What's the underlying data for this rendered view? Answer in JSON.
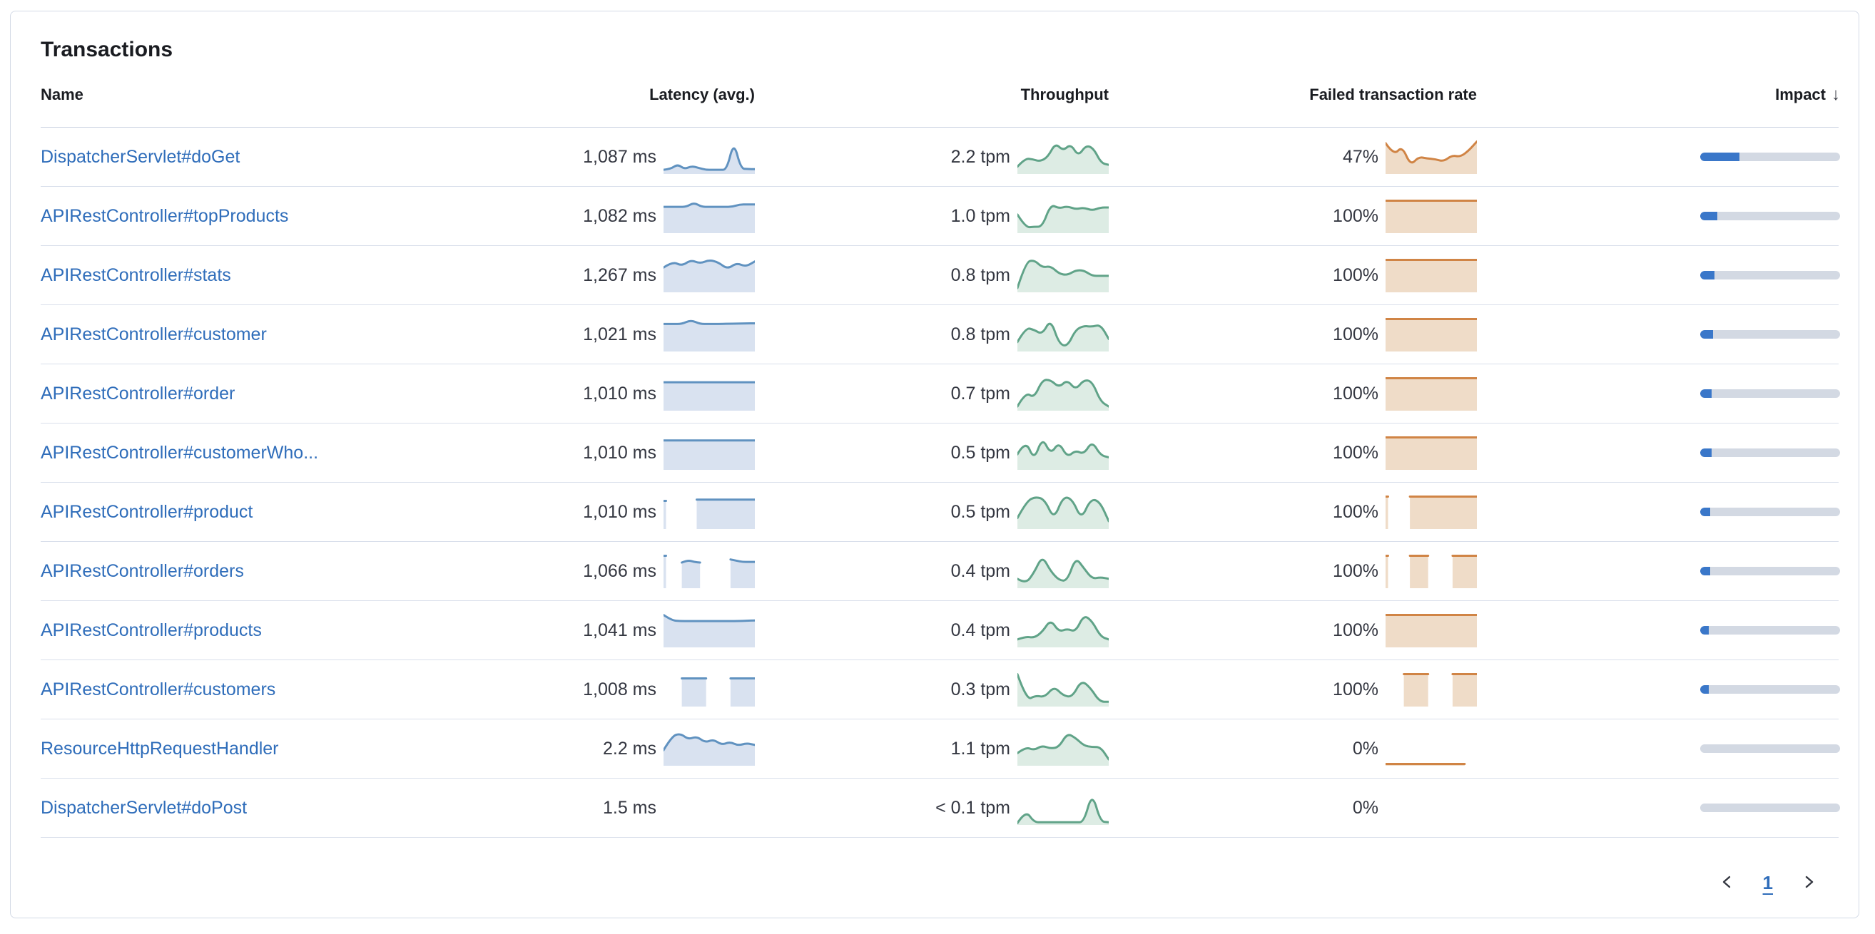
{
  "card": {
    "title": "Transactions"
  },
  "colors": {
    "link_blue": "#2f6dba",
    "latency_stroke": "#6092c0",
    "latency_fill": "#d9e2f0",
    "throughput_stroke": "#60a388",
    "throughput_fill": "#ddece4",
    "failed_stroke": "#d08445",
    "failed_fill": "#efdcc8",
    "impact_fill": "#3a77c9",
    "impact_track": "#d3d9e3"
  },
  "table": {
    "columns": [
      {
        "label": "Name",
        "align": "left",
        "sortable": false
      },
      {
        "label": "Latency (avg.)",
        "align": "right",
        "sortable": true
      },
      {
        "label": "Throughput",
        "align": "right",
        "sortable": true
      },
      {
        "label": "Failed transaction rate",
        "align": "right",
        "sortable": true
      },
      {
        "label": "Impact",
        "align": "right",
        "sortable": true,
        "sort_icon": "↓",
        "sort_direction": "descending"
      }
    ],
    "rows": [
      {
        "name": "DispatcherServlet#doGet",
        "latency": "1,087 ms",
        "latency_spark": [
          0.08,
          0.1,
          0.26,
          0.1,
          0.2,
          0.14,
          0.08,
          0.08,
          0.08,
          0.08,
          1.0,
          0.12,
          0.1,
          0.1
        ],
        "throughput": "2.2 tpm",
        "throughput_spark": [
          0.18,
          0.45,
          0.42,
          0.35,
          0.5,
          0.95,
          0.7,
          0.92,
          0.52,
          0.88,
          0.78,
          0.3,
          0.24
        ],
        "failed_rate": "47%",
        "failed_spark": [
          0.95,
          0.55,
          0.85,
          0.22,
          0.5,
          0.45,
          0.42,
          0.35,
          0.55,
          0.5,
          0.7,
          1.0
        ],
        "impact_pct": 28
      },
      {
        "name": "APIRestController#topProducts",
        "latency": "1,082 ms",
        "latency_spark": [
          0.8,
          0.8,
          0.8,
          0.8,
          0.94,
          0.8,
          0.8,
          0.8,
          0.8,
          0.8,
          0.88,
          0.88,
          0.88
        ],
        "throughput": "1.0 tpm",
        "throughput_spark": [
          0.55,
          0.12,
          0.15,
          0.15,
          0.88,
          0.75,
          0.82,
          0.72,
          0.78,
          0.68,
          0.78,
          0.78
        ],
        "failed_rate": "100%",
        "failed_spark": [
          1,
          1,
          1,
          1,
          1,
          1,
          1,
          1,
          1,
          1
        ],
        "impact_pct": 12
      },
      {
        "name": "APIRestController#stats",
        "latency": "1,267 ms",
        "latency_spark": [
          0.75,
          0.95,
          0.8,
          1.0,
          0.88,
          1.0,
          0.92,
          0.7,
          0.9,
          0.78,
          0.95
        ],
        "throughput": "0.8 tpm",
        "throughput_spark": [
          0.08,
          0.92,
          1.0,
          0.75,
          0.8,
          0.55,
          0.5,
          0.66,
          0.66,
          0.48,
          0.48,
          0.48
        ],
        "failed_rate": "100%",
        "failed_spark": [
          1,
          1,
          1,
          1,
          1,
          1,
          1,
          1,
          1,
          1
        ],
        "impact_pct": 10
      },
      {
        "name": "APIRestController#customer",
        "latency": "1,021 ms",
        "latency_spark": [
          0.84,
          0.84,
          0.84,
          0.97,
          0.84,
          0.84,
          0.84,
          0.85,
          0.85,
          0.86,
          0.86
        ],
        "throughput": "0.8 tpm",
        "throughput_spark": [
          0.25,
          0.72,
          0.65,
          0.5,
          1.0,
          0.2,
          0.1,
          0.65,
          0.78,
          0.75,
          0.82,
          0.35
        ],
        "failed_rate": "100%",
        "failed_spark": [
          1,
          1,
          1,
          1,
          1,
          1,
          1,
          1,
          1,
          1
        ],
        "impact_pct": 9
      },
      {
        "name": "APIRestController#order",
        "latency": "1,010 ms",
        "latency_spark": [
          0.87,
          0.87,
          0.87,
          0.87,
          0.87,
          0.87,
          0.87,
          0.87,
          0.87,
          0.87
        ],
        "throughput": "0.7 tpm",
        "throughput_spark": [
          0.08,
          0.55,
          0.35,
          0.95,
          0.95,
          0.7,
          0.95,
          0.62,
          0.95,
          0.9,
          0.25,
          0.08
        ],
        "failed_rate": "100%",
        "failed_spark": [
          1,
          1,
          1,
          1,
          1,
          1,
          1,
          1,
          1
        ],
        "impact_pct": 8
      },
      {
        "name": "APIRestController#customerWho...",
        "latency": "1,010 ms",
        "latency_spark": [
          0.9,
          0.9,
          0.9,
          0.9,
          0.9,
          0.9,
          0.9,
          0.9,
          0.9,
          0.9
        ],
        "throughput": "0.5 tpm",
        "throughput_spark": [
          0.45,
          0.92,
          0.25,
          1.0,
          0.45,
          0.85,
          0.35,
          0.58,
          0.45,
          0.88,
          0.42,
          0.35
        ],
        "failed_rate": "100%",
        "failed_spark": [
          1,
          1,
          1,
          1,
          1,
          1,
          1,
          1,
          1,
          1
        ],
        "impact_pct": 8
      },
      {
        "name": "APIRestController#product",
        "latency": "1,010 ms",
        "latency_spark": [
          0.86,
          null,
          null,
          null,
          0.9,
          0.9,
          0.9,
          0.9,
          0.9,
          0.9,
          0.9,
          0.9
        ],
        "throughput": "0.5 tpm",
        "throughput_spark": [
          0.3,
          0.85,
          1.0,
          0.9,
          0.25,
          1.0,
          0.92,
          0.25,
          0.92,
          0.85,
          0.2
        ],
        "failed_rate": "100%",
        "failed_spark": [
          1,
          null,
          null,
          null,
          1,
          1,
          1,
          1,
          1,
          1,
          1,
          1,
          1,
          1,
          1,
          1
        ],
        "impact_pct": 7
      },
      {
        "name": "APIRestController#orders",
        "latency": "1,066 ms",
        "latency_spark": [
          1.0,
          null,
          null,
          0.78,
          0.86,
          0.8,
          0.78,
          null,
          null,
          null,
          null,
          0.88,
          0.84,
          0.8,
          0.8,
          0.8
        ],
        "throughput": "0.4 tpm",
        "throughput_spark": [
          0.25,
          0.08,
          0.45,
          1.0,
          0.5,
          0.2,
          0.18,
          0.95,
          0.6,
          0.25,
          0.3,
          0.25
        ],
        "failed_rate": "100%",
        "failed_spark": [
          1,
          null,
          null,
          null,
          1,
          1,
          1,
          1,
          null,
          null,
          null,
          1,
          1,
          1,
          1,
          1
        ],
        "impact_pct": 7
      },
      {
        "name": "APIRestController#products",
        "latency": "1,041 ms",
        "latency_spark": [
          1.0,
          0.82,
          0.8,
          0.8,
          0.8,
          0.8,
          0.8,
          0.8,
          0.8,
          0.8,
          0.81,
          0.82
        ],
        "throughput": "0.4 tpm",
        "throughput_spark": [
          0.2,
          0.3,
          0.25,
          0.45,
          0.85,
          0.45,
          0.55,
          0.45,
          1.0,
          0.8,
          0.3,
          0.2
        ],
        "failed_rate": "100%",
        "failed_spark": [
          1,
          1,
          1,
          1,
          1,
          1,
          1,
          1,
          1,
          1
        ],
        "impact_pct": 6
      },
      {
        "name": "APIRestController#customers",
        "latency": "1,008 ms",
        "latency_spark": [
          null,
          null,
          null,
          0.86,
          0.86,
          0.86,
          0.86,
          0.86,
          null,
          null,
          null,
          0.86,
          0.86,
          0.86,
          0.86,
          0.86
        ],
        "throughput": "0.3 tpm",
        "throughput_spark": [
          1.0,
          0.15,
          0.3,
          0.25,
          0.6,
          0.3,
          0.25,
          0.8,
          0.55,
          0.1,
          0.1
        ],
        "failed_rate": "100%",
        "failed_spark": [
          null,
          null,
          null,
          1,
          1,
          1,
          1,
          1,
          null,
          null,
          null,
          1,
          1,
          1,
          1,
          1
        ],
        "impact_pct": 6
      },
      {
        "name": "ResourceHttpRequestHandler",
        "latency": "2.2 ms",
        "latency_spark": [
          0.45,
          0.9,
          1.0,
          0.8,
          0.9,
          0.7,
          0.8,
          0.62,
          0.72,
          0.6,
          0.68,
          0.62
        ],
        "throughput": "1.1 tpm",
        "throughput_spark": [
          0.35,
          0.55,
          0.45,
          0.6,
          0.5,
          0.55,
          1.0,
          0.85,
          0.6,
          0.55,
          0.55,
          0.15
        ],
        "failed_rate": "0%",
        "failed_spark": [
          0,
          0,
          0,
          0,
          0,
          0,
          0,
          0,
          0,
          0,
          0,
          0,
          0,
          0,
          null,
          null
        ],
        "impact_pct": 0
      },
      {
        "name": "DispatcherServlet#doPost",
        "latency": "1.5 ms",
        "latency_spark": null,
        "throughput": "< 0.1 tpm",
        "throughput_spark": [
          0.0,
          0.42,
          0.03,
          0.03,
          0.03,
          0.03,
          0.03,
          0.03,
          0.03,
          1.0,
          0.05,
          0.03
        ],
        "failed_rate": "0%",
        "failed_spark": null,
        "impact_pct": 0
      }
    ]
  },
  "pagination": {
    "current_page": "1",
    "prev_icon": "chevron-left",
    "next_icon": "chevron-right"
  }
}
